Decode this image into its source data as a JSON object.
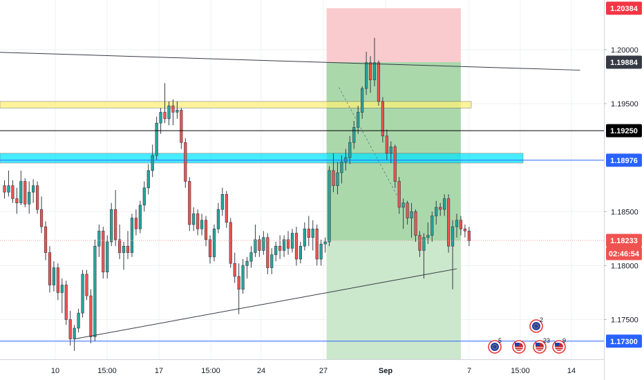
{
  "chart_data": {
    "type": "candlestick",
    "instrument_hint": "EURUSD 4H",
    "y_axis": {
      "range": [
        1.1694,
        1.2046
      ],
      "ticks": [
        1.175,
        1.18,
        1.185,
        1.195,
        1.2
      ],
      "tick_labels": [
        "1.17500",
        "1.18000",
        "1.18500",
        "1.19500",
        "1.20000"
      ]
    },
    "x_axis": {
      "tick_labels": [
        "10",
        "15:00",
        "17",
        "15:00",
        "24",
        "27",
        "Sep",
        "7",
        "15:00",
        "14"
      ]
    },
    "price_labels": [
      {
        "value": 1.20384,
        "text": "1.20384",
        "bg": "#f23645",
        "fg": "#ffffff"
      },
      {
        "value": 1.19884,
        "text": "1.19884",
        "bg": "#363a45",
        "fg": "#ffffff"
      },
      {
        "value": 1.1925,
        "text": "1.19250",
        "bg": "#000000",
        "fg": "#ffffff"
      },
      {
        "value": 1.18976,
        "text": "1.18976",
        "bg": "#2962ff",
        "fg": "#ffffff"
      },
      {
        "value": 1.18233,
        "text": "1.18233",
        "bg": "#ef5350",
        "fg": "#ffffff"
      },
      {
        "value": 1.173,
        "text": "1.17300",
        "bg": "#2962ff",
        "fg": "#ffffff"
      }
    ],
    "countdown": {
      "text": "02:46:54",
      "bg": "#ef5350",
      "fg": "#ffffff"
    },
    "horizontal_lines": [
      {
        "value": 1.1925,
        "color": "#000000"
      },
      {
        "value": 1.18976,
        "color": "#2962ff"
      },
      {
        "value": 1.173,
        "color": "#2962ff"
      },
      {
        "value": 1.18233,
        "color": "#ef9a9a",
        "style": "dotted"
      }
    ],
    "zones": [
      {
        "name": "supply",
        "y": [
          1.1952,
          1.1946
        ],
        "color": "#fff176"
      },
      {
        "name": "demand",
        "y": [
          1.1904,
          1.1895
        ],
        "color": "#00e5ff"
      }
    ],
    "trendlines": [
      {
        "from": [
          -5,
          1.1998
        ],
        "to": [
          140,
          1.1981
        ],
        "color": "#363a45"
      },
      {
        "from": [
          17,
          1.1732
        ],
        "to": [
          110,
          1.1797
        ],
        "color": "#363a45"
      }
    ],
    "position": {
      "type": "short",
      "entry": 1.19884,
      "stop": 1.20384,
      "target": 1.18233,
      "x_range": [
        79,
        111
      ]
    },
    "candles": [
      [
        1.1874,
        1.1879,
        1.1862,
        1.1868
      ],
      [
        1.1868,
        1.1888,
        1.1864,
        1.1874
      ],
      [
        1.1874,
        1.1879,
        1.1858,
        1.1862
      ],
      [
        1.1862,
        1.1872,
        1.1848,
        1.1858
      ],
      [
        1.1858,
        1.1888,
        1.1856,
        1.1878
      ],
      [
        1.1878,
        1.1881,
        1.1854,
        1.1857
      ],
      [
        1.1857,
        1.1878,
        1.1848,
        1.1868
      ],
      [
        1.1868,
        1.188,
        1.1858,
        1.1874
      ],
      [
        1.1874,
        1.1878,
        1.1848,
        1.1852
      ],
      [
        1.1852,
        1.1864,
        1.183,
        1.1836
      ],
      [
        1.1836,
        1.1841,
        1.1805,
        1.1812
      ],
      [
        1.1812,
        1.1818,
        1.1775,
        1.1782
      ],
      [
        1.1782,
        1.1804,
        1.1776,
        1.1798
      ],
      [
        1.1798,
        1.1802,
        1.1768,
        1.1775
      ],
      [
        1.1775,
        1.1788,
        1.1756,
        1.1782
      ],
      [
        1.1782,
        1.1786,
        1.1745,
        1.175
      ],
      [
        1.175,
        1.1758,
        1.1726,
        1.1732
      ],
      [
        1.1732,
        1.1745,
        1.1721,
        1.1742
      ],
      [
        1.1742,
        1.176,
        1.1738,
        1.1756
      ],
      [
        1.1756,
        1.1796,
        1.1752,
        1.1792
      ],
      [
        1.1792,
        1.1796,
        1.1768,
        1.1772
      ],
      [
        1.1772,
        1.1778,
        1.1728,
        1.1734
      ],
      [
        1.1734,
        1.1824,
        1.173,
        1.1818
      ],
      [
        1.1818,
        1.1838,
        1.1808,
        1.1832
      ],
      [
        1.1832,
        1.1836,
        1.1788,
        1.1794
      ],
      [
        1.1794,
        1.1828,
        1.1788,
        1.1822
      ],
      [
        1.1822,
        1.1858,
        1.1818,
        1.1852
      ],
      [
        1.1852,
        1.187,
        1.1818,
        1.1824
      ],
      [
        1.1824,
        1.1838,
        1.1806,
        1.1812
      ],
      [
        1.1812,
        1.1822,
        1.1796,
        1.1818
      ],
      [
        1.1818,
        1.1832,
        1.1806,
        1.1812
      ],
      [
        1.1812,
        1.1848,
        1.1808,
        1.1844
      ],
      [
        1.1844,
        1.1852,
        1.1828,
        1.1834
      ],
      [
        1.1834,
        1.186,
        1.183,
        1.1856
      ],
      [
        1.1856,
        1.1878,
        1.185,
        1.1872
      ],
      [
        1.1872,
        1.1894,
        1.1866,
        1.1888
      ],
      [
        1.1888,
        1.1912,
        1.1882,
        1.1902
      ],
      [
        1.1902,
        1.1938,
        1.1898,
        1.1932
      ],
      [
        1.1932,
        1.1946,
        1.1922,
        1.1942
      ],
      [
        1.1942,
        1.1969,
        1.1932,
        1.1936
      ],
      [
        1.1936,
        1.1952,
        1.193,
        1.1948
      ],
      [
        1.1948,
        1.1954,
        1.193,
        1.1942
      ],
      [
        1.1942,
        1.1952,
        1.1936,
        1.1944
      ],
      [
        1.1944,
        1.1946,
        1.1908,
        1.1914
      ],
      [
        1.1914,
        1.1918,
        1.1872,
        1.1878
      ],
      [
        1.1878,
        1.1882,
        1.1832,
        1.1838
      ],
      [
        1.1838,
        1.1854,
        1.1832,
        1.1848
      ],
      [
        1.1848,
        1.1852,
        1.1828,
        1.1834
      ],
      [
        1.1834,
        1.1848,
        1.1828,
        1.1842
      ],
      [
        1.1842,
        1.1846,
        1.1818,
        1.1824
      ],
      [
        1.1824,
        1.1828,
        1.1802,
        1.1808
      ],
      [
        1.1808,
        1.1838,
        1.1804,
        1.1834
      ],
      [
        1.1834,
        1.1858,
        1.183,
        1.1852
      ],
      [
        1.1852,
        1.1872,
        1.1846,
        1.1866
      ],
      [
        1.1866,
        1.1869,
        1.1835,
        1.184
      ],
      [
        1.184,
        1.1844,
        1.1798,
        1.1802
      ],
      [
        1.1802,
        1.1812,
        1.1784,
        1.179
      ],
      [
        1.179,
        1.1802,
        1.1755,
        1.1778
      ],
      [
        1.1778,
        1.1806,
        1.1774,
        1.18
      ],
      [
        1.18,
        1.1808,
        1.1788,
        1.1804
      ],
      [
        1.1804,
        1.1818,
        1.1798,
        1.1812
      ],
      [
        1.1812,
        1.1838,
        1.1808,
        1.1824
      ],
      [
        1.1824,
        1.1828,
        1.1808,
        1.1814
      ],
      [
        1.1814,
        1.1832,
        1.181,
        1.1826
      ],
      [
        1.1826,
        1.183,
        1.1792,
        1.1798
      ],
      [
        1.1798,
        1.1816,
        1.1792,
        1.181
      ],
      [
        1.181,
        1.1822,
        1.1804,
        1.1818
      ],
      [
        1.1818,
        1.1828,
        1.1806,
        1.1814
      ],
      [
        1.1814,
        1.1828,
        1.1808,
        1.1824
      ],
      [
        1.1824,
        1.1832,
        1.181,
        1.1816
      ],
      [
        1.1816,
        1.1834,
        1.1812,
        1.183
      ],
      [
        1.183,
        1.1836,
        1.18,
        1.1806
      ],
      [
        1.1806,
        1.1822,
        1.1802,
        1.1818
      ],
      [
        1.1818,
        1.184,
        1.1814,
        1.1834
      ],
      [
        1.1834,
        1.1846,
        1.1818,
        1.1826
      ],
      [
        1.1826,
        1.1842,
        1.1814,
        1.1834
      ],
      [
        1.1834,
        1.1838,
        1.18,
        1.1806
      ],
      [
        1.1806,
        1.1824,
        1.18,
        1.182
      ],
      [
        1.182,
        1.1826,
        1.1812,
        1.1822
      ],
      [
        1.1822,
        1.1892,
        1.1818,
        1.1888
      ],
      [
        1.1888,
        1.1904,
        1.1868,
        1.1874
      ],
      [
        1.1874,
        1.1896,
        1.1866,
        1.1886
      ],
      [
        1.1886,
        1.1902,
        1.1876,
        1.1896
      ],
      [
        1.1896,
        1.1908,
        1.1888,
        1.19
      ],
      [
        1.19,
        1.192,
        1.1894,
        1.1914
      ],
      [
        1.1914,
        1.1934,
        1.1908,
        1.1928
      ],
      [
        1.1928,
        1.1948,
        1.1922,
        1.1942
      ],
      [
        1.1942,
        1.1966,
        1.1936,
        1.1964
      ],
      [
        1.1964,
        1.1998,
        1.1958,
        1.1988
      ],
      [
        1.1988,
        1.1994,
        1.196,
        1.1972
      ],
      [
        1.1972,
        1.2011,
        1.1966,
        1.1988
      ],
      [
        1.1988,
        1.199,
        1.1948,
        1.1952
      ],
      [
        1.1952,
        1.1956,
        1.1914,
        1.192
      ],
      [
        1.192,
        1.1926,
        1.1898,
        1.1904
      ],
      [
        1.1904,
        1.1915,
        1.1895,
        1.191
      ],
      [
        1.191,
        1.1912,
        1.1872,
        1.1878
      ],
      [
        1.1878,
        1.1882,
        1.1848,
        1.1854
      ],
      [
        1.1854,
        1.1862,
        1.1834,
        1.1858
      ],
      [
        1.1858,
        1.186,
        1.1838,
        1.1844
      ],
      [
        1.1844,
        1.1858,
        1.1826,
        1.185
      ],
      [
        1.185,
        1.1852,
        1.1822,
        1.1828
      ],
      [
        1.1828,
        1.1832,
        1.1808,
        1.1814
      ],
      [
        1.1814,
        1.183,
        1.1788,
        1.1826
      ],
      [
        1.1826,
        1.184,
        1.182,
        1.1828
      ],
      [
        1.1828,
        1.185,
        1.1822,
        1.1846
      ],
      [
        1.1846,
        1.186,
        1.1838,
        1.1854
      ],
      [
        1.1854,
        1.1858,
        1.1846,
        1.1852
      ],
      [
        1.1852,
        1.1866,
        1.1846,
        1.1862
      ],
      [
        1.1862,
        1.1866,
        1.1812,
        1.1818
      ],
      [
        1.1818,
        1.1842,
        1.1778,
        1.1836
      ],
      [
        1.1836,
        1.1848,
        1.1826,
        1.1842
      ],
      [
        1.1842,
        1.1846,
        1.1828,
        1.1834
      ],
      [
        1.1834,
        1.1838,
        1.1826,
        1.1832
      ],
      [
        1.1832,
        1.1836,
        1.1818,
        1.1823
      ]
    ]
  },
  "events": [
    {
      "count": "5",
      "flag": "eu-flag-icon"
    },
    {
      "count": "",
      "flag": "us-flag-icon"
    },
    {
      "count": "2",
      "flag": "eu-flag-icon"
    },
    {
      "count": "23",
      "flag": "us-flag-icon"
    },
    {
      "count": "9",
      "flag": "us-flag-icon"
    }
  ],
  "colors": {
    "up": "#26a69a",
    "down": "#ef5350",
    "candle_outline": "#363a45",
    "grid": "#eef0f3",
    "axis_text": "#131722",
    "stop_zone": "#f9c5c9",
    "target_zone": "#a5d6a7",
    "target_zone_light": "#c8e6c9"
  }
}
